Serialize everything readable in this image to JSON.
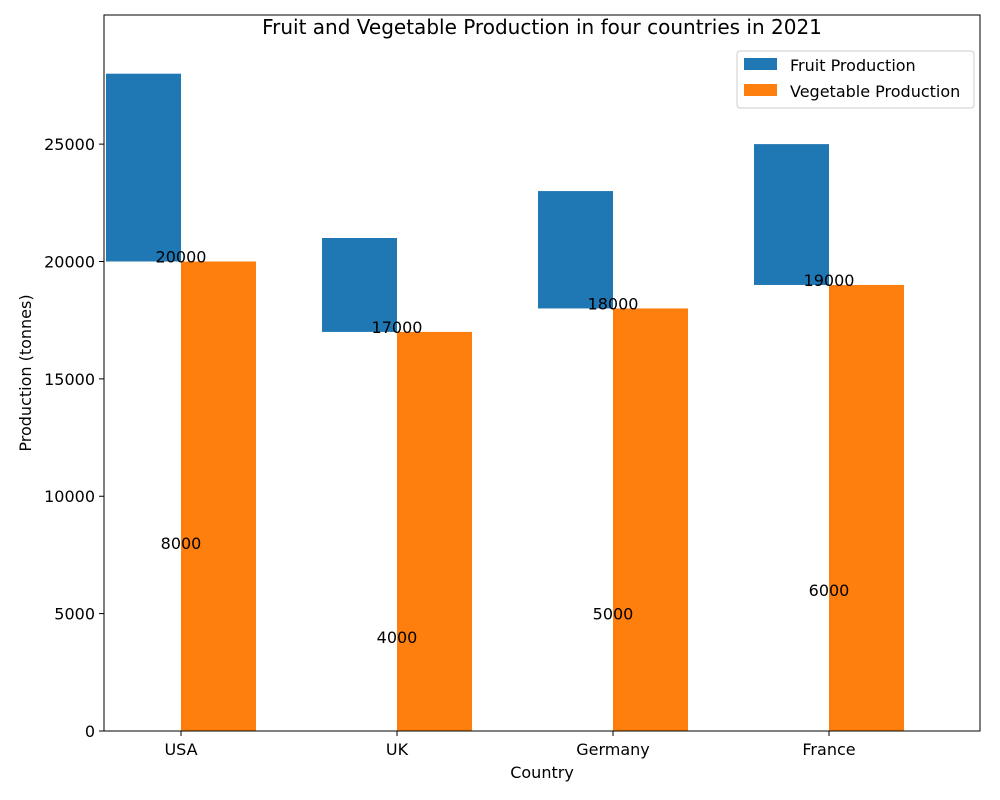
{
  "chart_data": {
    "type": "bar",
    "title": "Fruit and Vegetable Production in four countries in 2021",
    "xlabel": "Country",
    "ylabel": "Production (tonnes)",
    "categories": [
      "USA",
      "UK",
      "Germany",
      "France"
    ],
    "ylim": [
      0,
      30500
    ],
    "yticks": [
      0,
      5000,
      10000,
      15000,
      20000,
      25000
    ],
    "grid": false,
    "legend": "top-right",
    "series": [
      {
        "name": "Fruit Production",
        "color": "#1f77b4",
        "values": [
          8000,
          4000,
          5000,
          6000
        ],
        "offsets": [
          20000,
          17000,
          18000,
          19000
        ]
      },
      {
        "name": "Vegetable Production",
        "color": "#ff7f0e",
        "values": [
          20000,
          17000,
          18000,
          19000
        ]
      }
    ],
    "data_labels": {
      "fruit": [
        "8000",
        "4000",
        "5000",
        "6000"
      ],
      "vegetable": [
        "20000",
        "17000",
        "18000",
        "19000"
      ]
    }
  }
}
